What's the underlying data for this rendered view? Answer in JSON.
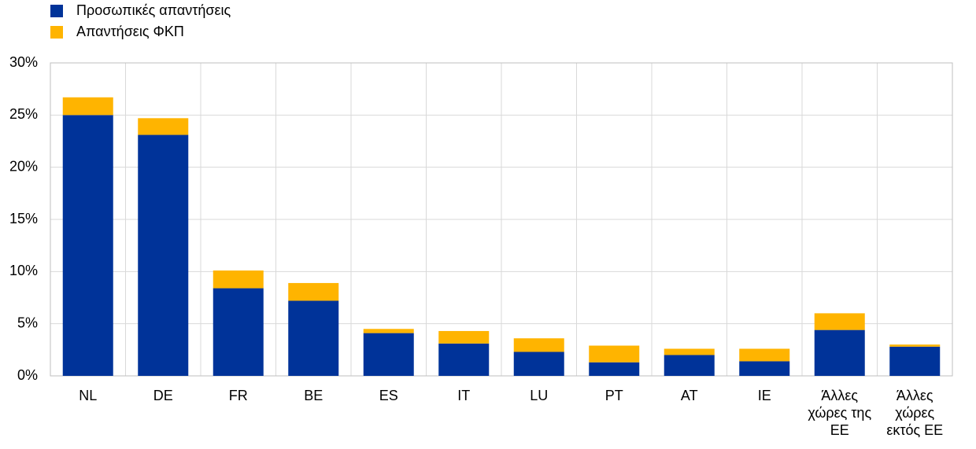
{
  "chart_data": {
    "type": "stacked_bar",
    "categories": [
      "NL",
      "DE",
      "FR",
      "BE",
      "ES",
      "IT",
      "LU",
      "PT",
      "AT",
      "IE",
      "Άλλες χώρες της ΕΕ",
      "Άλλες χώρες εκτός ΕΕ"
    ],
    "series": [
      {
        "name": "Προσωπικές απαντήσεις",
        "color": "#003399",
        "values": [
          25.0,
          23.1,
          8.4,
          7.2,
          4.1,
          3.1,
          2.3,
          1.3,
          2.0,
          1.4,
          4.4,
          2.8
        ]
      },
      {
        "name": "Απαντήσεις ΦΚΠ",
        "color": "#ffb400",
        "values": [
          1.7,
          1.6,
          1.7,
          1.7,
          0.4,
          1.2,
          1.3,
          1.6,
          0.6,
          1.2,
          1.6,
          0.2
        ]
      }
    ],
    "ylim": [
      0,
      30
    ],
    "yticks": [
      {
        "value": 0,
        "label": "0%"
      },
      {
        "value": 5,
        "label": "5%"
      },
      {
        "value": 10,
        "label": "10%"
      },
      {
        "value": 15,
        "label": "15%"
      },
      {
        "value": 20,
        "label": "20%"
      },
      {
        "value": 25,
        "label": "25%"
      },
      {
        "value": 30,
        "label": "30%"
      }
    ],
    "grid": true
  }
}
